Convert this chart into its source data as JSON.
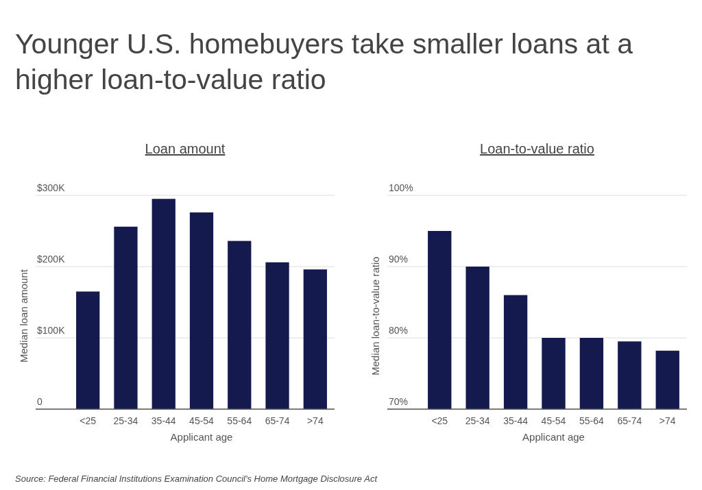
{
  "chart_data": [
    {
      "type": "bar",
      "title": "Younger U.S. homebuyers take smaller loans at a higher loan-to-value ratio",
      "subtitle": "Loan amount",
      "xlabel": "Applicant age",
      "ylabel": "Median loan amount",
      "categories": [
        "<25",
        "25-34",
        "35-44",
        "45-54",
        "55-64",
        "65-74",
        ">74"
      ],
      "values": [
        165,
        256,
        295,
        276,
        236,
        206,
        196
      ],
      "color": "#141a4e",
      "ylim": [
        0,
        300
      ],
      "yticks": [
        0,
        {
          "value": 100,
          "label": "$100K"
        },
        {
          "value": 200,
          "label": "$200K"
        },
        {
          "value": 300,
          "label": "$300K"
        }
      ],
      "grid": "y",
      "annotations": [
        "Source:  Federal Financial Institutions Examination Council's Home Mortgage Disclosure Act"
      ]
    },
    {
      "type": "bar",
      "subtitle": "Loan-to-value ratio",
      "xlabel": "Applicant age",
      "ylabel": "Median loan-to-value ratio",
      "categories": [
        "<25",
        "25-34",
        "35-44",
        "45-54",
        "55-64",
        "65-74",
        ">74"
      ],
      "values": [
        95,
        90,
        86,
        80,
        80,
        79.5,
        78.2
      ],
      "color": "#141a4e",
      "ylim": [
        70,
        100
      ],
      "yticks": [
        {
          "value": 70,
          "label": "70%"
        },
        {
          "value": 80,
          "label": "80%"
        },
        {
          "value": 90,
          "label": "90%"
        },
        {
          "value": 100,
          "label": "100%"
        }
      ],
      "grid": "y"
    }
  ]
}
